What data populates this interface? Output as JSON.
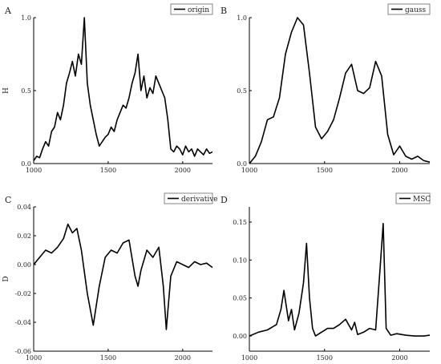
{
  "chart_data": [
    {
      "panel_letter": "A",
      "type": "line",
      "xlabel": "",
      "ylabel": "H",
      "legend": "origin",
      "legend_position": "top-right",
      "xlim": [
        1000,
        2200
      ],
      "ylim": [
        0,
        1.0
      ],
      "xticks": [
        1000,
        1500,
        2000
      ],
      "yticks": [
        0.0,
        0.5,
        1.0
      ],
      "ytick_labels": [
        "0.0",
        "0.5",
        "1.0"
      ],
      "series": [
        {
          "name": "origin",
          "x": [
            1000,
            1020,
            1040,
            1060,
            1080,
            1100,
            1120,
            1140,
            1160,
            1180,
            1200,
            1220,
            1240,
            1260,
            1280,
            1300,
            1320,
            1340,
            1360,
            1380,
            1400,
            1420,
            1440,
            1460,
            1480,
            1500,
            1520,
            1540,
            1560,
            1580,
            1600,
            1620,
            1640,
            1660,
            1680,
            1700,
            1720,
            1740,
            1760,
            1780,
            1800,
            1820,
            1840,
            1860,
            1880,
            1900,
            1920,
            1940,
            1960,
            1980,
            2000,
            2020,
            2040,
            2060,
            2080,
            2100,
            2120,
            2140,
            2160,
            2180,
            2200
          ],
          "y": [
            0.02,
            0.05,
            0.04,
            0.1,
            0.15,
            0.12,
            0.22,
            0.25,
            0.35,
            0.3,
            0.4,
            0.55,
            0.62,
            0.7,
            0.6,
            0.75,
            0.68,
            1.0,
            0.55,
            0.4,
            0.3,
            0.2,
            0.12,
            0.15,
            0.18,
            0.2,
            0.25,
            0.22,
            0.3,
            0.35,
            0.4,
            0.38,
            0.45,
            0.55,
            0.62,
            0.75,
            0.5,
            0.6,
            0.45,
            0.52,
            0.48,
            0.6,
            0.55,
            0.5,
            0.45,
            0.3,
            0.1,
            0.08,
            0.12,
            0.1,
            0.06,
            0.12,
            0.08,
            0.1,
            0.05,
            0.1,
            0.08,
            0.06,
            0.1,
            0.07,
            0.08
          ]
        }
      ]
    },
    {
      "panel_letter": "B",
      "type": "line",
      "xlabel": "",
      "ylabel": "",
      "legend": "gauss",
      "legend_position": "top-right",
      "xlim": [
        1000,
        2200
      ],
      "ylim": [
        0,
        1.0
      ],
      "xticks": [
        1000,
        1500,
        2000
      ],
      "yticks": [
        0.0,
        0.5,
        1.0
      ],
      "ytick_labels": [
        "0.0",
        "0.5",
        "1.0"
      ],
      "series": [
        {
          "name": "gauss",
          "x": [
            1000,
            1040,
            1080,
            1120,
            1160,
            1200,
            1240,
            1280,
            1320,
            1360,
            1400,
            1440,
            1480,
            1520,
            1560,
            1600,
            1640,
            1680,
            1720,
            1760,
            1800,
            1840,
            1880,
            1920,
            1960,
            2000,
            2040,
            2080,
            2120,
            2160,
            2200
          ],
          "y": [
            0.0,
            0.05,
            0.15,
            0.3,
            0.32,
            0.45,
            0.75,
            0.9,
            1.0,
            0.95,
            0.62,
            0.25,
            0.17,
            0.22,
            0.3,
            0.45,
            0.62,
            0.68,
            0.5,
            0.48,
            0.52,
            0.7,
            0.6,
            0.2,
            0.06,
            0.12,
            0.05,
            0.03,
            0.05,
            0.02,
            0.01
          ]
        }
      ]
    },
    {
      "panel_letter": "C",
      "type": "line",
      "xlabel": "",
      "ylabel": "D",
      "legend": "derivative",
      "legend_position": "top-right",
      "xlim": [
        1000,
        2200
      ],
      "ylim": [
        -0.06,
        0.04
      ],
      "xticks": [
        1000,
        1500,
        2000
      ],
      "yticks": [
        -0.06,
        -0.04,
        -0.02,
        0.0,
        0.02,
        0.04
      ],
      "ytick_labels": [
        "-0.06",
        "-0.04",
        "-0.02",
        "0.00",
        "0.02",
        "0.04"
      ],
      "series": [
        {
          "name": "derivative",
          "x": [
            1000,
            1040,
            1080,
            1120,
            1160,
            1200,
            1230,
            1260,
            1290,
            1320,
            1360,
            1400,
            1440,
            1480,
            1520,
            1560,
            1600,
            1640,
            1680,
            1700,
            1720,
            1760,
            1800,
            1840,
            1870,
            1890,
            1920,
            1960,
            2000,
            2040,
            2080,
            2120,
            2160,
            2200
          ],
          "y": [
            0.0,
            0.005,
            0.01,
            0.008,
            0.012,
            0.018,
            0.028,
            0.022,
            0.025,
            0.01,
            -0.02,
            -0.042,
            -0.015,
            0.005,
            0.01,
            0.008,
            0.015,
            0.017,
            -0.008,
            -0.015,
            -0.004,
            0.01,
            0.005,
            0.012,
            -0.015,
            -0.045,
            -0.008,
            0.002,
            0.0,
            -0.002,
            0.002,
            0.0,
            0.001,
            -0.002
          ]
        }
      ]
    },
    {
      "panel_letter": "D",
      "type": "line",
      "xlabel": "",
      "ylabel": "",
      "legend": "MSC",
      "legend_position": "top-right",
      "xlim": [
        1000,
        2200
      ],
      "ylim": [
        -0.02,
        0.17
      ],
      "xticks": [
        1000,
        1500,
        2000
      ],
      "yticks": [
        0.0,
        0.05,
        0.1,
        0.15
      ],
      "ytick_labels": [
        "0.00",
        "0.05",
        "0.10",
        "0.15"
      ],
      "series": [
        {
          "name": "MSC",
          "x": [
            1000,
            1060,
            1120,
            1180,
            1210,
            1230,
            1260,
            1280,
            1300,
            1330,
            1360,
            1380,
            1400,
            1420,
            1440,
            1480,
            1520,
            1560,
            1600,
            1640,
            1680,
            1700,
            1720,
            1760,
            1800,
            1840,
            1870,
            1890,
            1910,
            1940,
            1980,
            2040,
            2100,
            2160,
            2200
          ],
          "y": [
            0.0,
            0.005,
            0.008,
            0.015,
            0.035,
            0.06,
            0.02,
            0.035,
            0.008,
            0.03,
            0.07,
            0.122,
            0.05,
            0.01,
            0.0,
            0.005,
            0.01,
            0.01,
            0.015,
            0.022,
            0.008,
            0.018,
            0.002,
            0.005,
            0.01,
            0.008,
            0.09,
            0.148,
            0.01,
            0.001,
            0.003,
            0.001,
            0.0,
            0.0,
            0.001
          ]
        }
      ]
    }
  ]
}
